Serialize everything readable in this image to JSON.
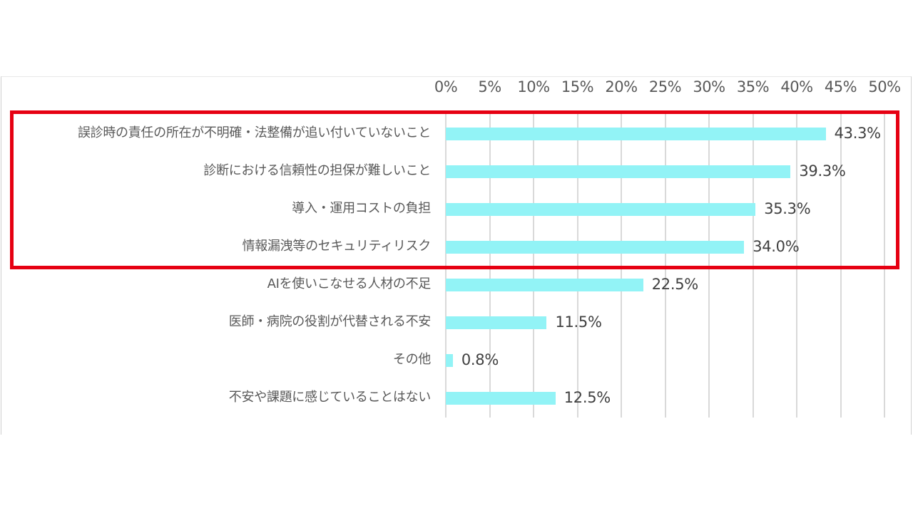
{
  "chart_data": {
    "type": "bar",
    "orientation": "horizontal",
    "title": "",
    "xlabel": "",
    "ylabel": "",
    "xlim": [
      0,
      50
    ],
    "x_ticks": [
      "0%",
      "5%",
      "10%",
      "15%",
      "20%",
      "25%",
      "30%",
      "35%",
      "40%",
      "45%",
      "50%"
    ],
    "x_tick_values": [
      0,
      5,
      10,
      15,
      20,
      25,
      30,
      35,
      40,
      45,
      50
    ],
    "grid": true,
    "legend": null,
    "bar_color": "#92f3f6",
    "categories": [
      "誤診時の責任の所在が不明確・法整備が追い付いていないこと",
      "診断における信頼性の担保が難しいこと",
      "導入・運用コストの負担",
      "情報漏洩等のセキュリティリスク",
      "AIを使いこなせる人材の不足",
      "医師・病院の役割が代替される不安",
      "その他",
      "不安や課題に感じていることはない"
    ],
    "values": [
      43.3,
      39.3,
      35.3,
      34.0,
      22.5,
      11.5,
      0.8,
      12.5
    ],
    "value_labels": [
      "43.3%",
      "39.3%",
      "35.3%",
      "34.0%",
      "22.5%",
      "11.5%",
      "0.8%",
      "12.5%"
    ],
    "annotations": [
      {
        "type": "highlight-box",
        "color": "#e60012",
        "covers_categories": [
          0,
          1,
          2,
          3
        ]
      }
    ]
  },
  "colors": {
    "bar": "#92f3f6",
    "highlight": "#e60012",
    "grid": "#d9d9d9",
    "text": "#595959"
  }
}
